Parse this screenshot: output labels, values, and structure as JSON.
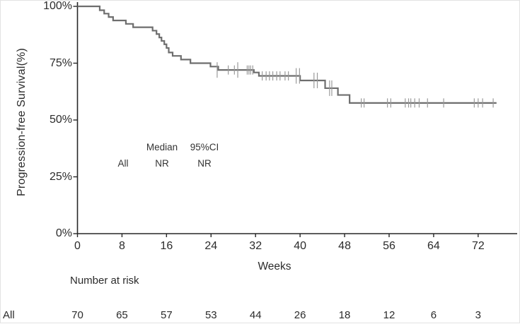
{
  "chart_data": {
    "type": "line",
    "subtype": "kaplan-meier-step",
    "title": "",
    "xlabel": "Weeks",
    "ylabel": "Progression-free Survival(%)",
    "x_ticks": [
      0,
      8,
      16,
      24,
      32,
      40,
      48,
      56,
      64,
      72
    ],
    "y_ticks": [
      0,
      25,
      50,
      75,
      100
    ],
    "y_tick_suffix": "%",
    "xlim": [
      0,
      79
    ],
    "ylim": [
      0,
      100
    ],
    "grid": false,
    "legend_position": "none",
    "colors": {
      "curve": "#6e6e6e",
      "censor": "#9a9a9a",
      "axis": "#262626",
      "text": "#2b2b2b"
    },
    "series": [
      {
        "name": "All",
        "median": "NR",
        "ci95": "NR",
        "points": [
          [
            0,
            100
          ],
          [
            4,
            98.3
          ],
          [
            4.8,
            96.8
          ],
          [
            5.6,
            95.3
          ],
          [
            6.4,
            93.8
          ],
          [
            8.7,
            92.3
          ],
          [
            10,
            90.8
          ],
          [
            13.5,
            89.3
          ],
          [
            14.2,
            87.8
          ],
          [
            14.7,
            86.3
          ],
          [
            15.1,
            84.8
          ],
          [
            15.6,
            83.3
          ],
          [
            16,
            81.7
          ],
          [
            16.4,
            79.7
          ],
          [
            17.1,
            78.2
          ],
          [
            18.6,
            76.6
          ],
          [
            20.3,
            75
          ],
          [
            23.9,
            73.5
          ],
          [
            25.3,
            72
          ],
          [
            31.7,
            70.9
          ],
          [
            32.6,
            69.4
          ],
          [
            40,
            67.4
          ],
          [
            44.5,
            64
          ],
          [
            46.8,
            61
          ],
          [
            48.9,
            57.5
          ]
        ],
        "end_x": 75.3,
        "censor_marks": [
          [
            25.1,
            72,
            2
          ],
          [
            27.1,
            72,
            1
          ],
          [
            28.2,
            72,
            1
          ],
          [
            28.8,
            72,
            2
          ],
          [
            30.5,
            72,
            1
          ],
          [
            30.8,
            72,
            1
          ],
          [
            31.1,
            72,
            1
          ],
          [
            31.5,
            72,
            1
          ],
          [
            33.2,
            69.4,
            1
          ],
          [
            33.9,
            69.4,
            1
          ],
          [
            34.5,
            69.4,
            1
          ],
          [
            35.1,
            69.4,
            1
          ],
          [
            35.8,
            69.4,
            1
          ],
          [
            36.4,
            69.4,
            1
          ],
          [
            37.3,
            69.4,
            1
          ],
          [
            37.9,
            69.4,
            1
          ],
          [
            39.3,
            69.4,
            2
          ],
          [
            39.9,
            69.4,
            2
          ],
          [
            42.5,
            67.4,
            2
          ],
          [
            43.1,
            67.4,
            2
          ],
          [
            45.3,
            64,
            2
          ],
          [
            45.7,
            64,
            2
          ],
          [
            51,
            57.5,
            1
          ],
          [
            51.5,
            57.5,
            1
          ],
          [
            55.7,
            57.5,
            1
          ],
          [
            56.3,
            57.5,
            1
          ],
          [
            58.9,
            57.5,
            1
          ],
          [
            59.5,
            57.5,
            1
          ],
          [
            59.9,
            57.5,
            1
          ],
          [
            60.6,
            57.5,
            1
          ],
          [
            61.4,
            57.5,
            1
          ],
          [
            62.9,
            57.5,
            1
          ],
          [
            65.8,
            57.5,
            1
          ],
          [
            71.3,
            57.5,
            1
          ],
          [
            72,
            57.5,
            1
          ],
          [
            72.8,
            57.5,
            1
          ],
          [
            74.7,
            57.5,
            1
          ]
        ]
      }
    ],
    "annotation": {
      "col_headers": [
        "Median",
        "95%CI"
      ],
      "rows": [
        [
          "All",
          "NR",
          "NR"
        ]
      ]
    }
  },
  "risk_table": {
    "header": "Number at risk",
    "row_label": "All",
    "weeks": [
      0,
      8,
      16,
      24,
      32,
      40,
      48,
      56,
      64,
      72
    ],
    "values": [
      70,
      65,
      57,
      53,
      44,
      26,
      18,
      12,
      6,
      3
    ]
  }
}
